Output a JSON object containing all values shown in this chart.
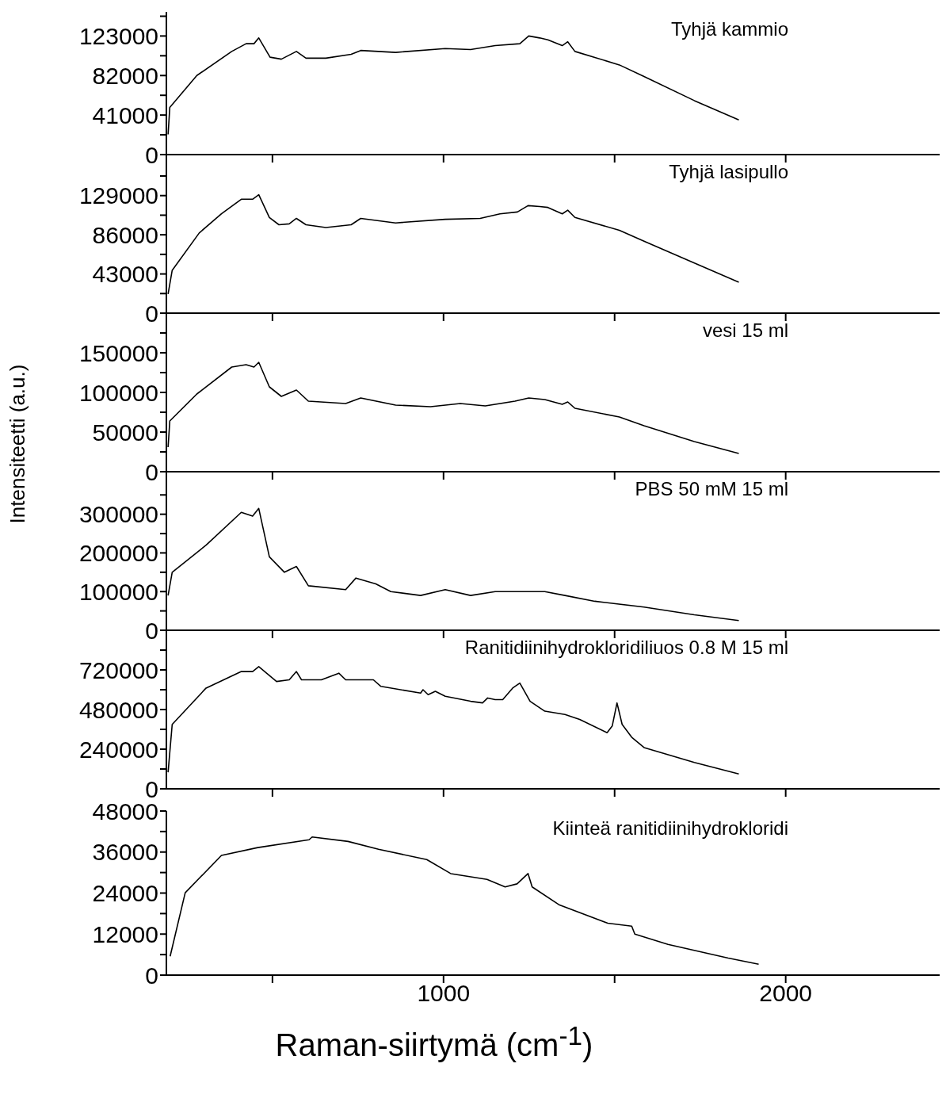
{
  "chart_data": [
    {
      "type": "line",
      "xlim": [
        190,
        2450
      ],
      "xticks": [
        {
          "value": 500,
          "label": null
        },
        {
          "value": 1000,
          "label": null
        },
        {
          "value": 1500,
          "label": null
        },
        {
          "value": 2000,
          "label": null
        }
      ],
      "tick_labels": "y",
      "ylim": [
        0,
        148000
      ],
      "yticks": [
        0,
        {
          "value": 20500,
          "label": null
        },
        41000,
        {
          "value": 61500,
          "label": null
        },
        82000,
        {
          "value": 102500,
          "label": null
        },
        123000,
        {
          "value": 143500,
          "label": null
        }
      ],
      "x": [
        195,
        200,
        279,
        381,
        423,
        446,
        460,
        493,
        526,
        570,
        598,
        656,
        730,
        758,
        860,
        1005,
        1079,
        1151,
        1223,
        1249,
        1281,
        1305,
        1347,
        1363,
        1384,
        1514,
        1586,
        1733,
        1863
      ],
      "series": [
        {
          "name": "Tyhjä kammio",
          "color": "#000000",
          "values": [
            21000,
            49000,
            82000,
            107000,
            115000,
            115000,
            121000,
            101000,
            99000,
            107000,
            100000,
            100000,
            104000,
            108000,
            106000,
            110000,
            109000,
            113000,
            115000,
            123000,
            121000,
            119000,
            113000,
            117000,
            107000,
            93000,
            81000,
            56000,
            36000
          ]
        }
      ]
    },
    {
      "type": "line",
      "xlim": [
        190,
        2450
      ],
      "xticks": [
        {
          "value": 500,
          "label": null
        },
        {
          "value": 1000,
          "label": null
        },
        {
          "value": 1500,
          "label": null
        },
        {
          "value": 2000,
          "label": null
        }
      ],
      "tick_labels": "y",
      "ylim": [
        0,
        174000
      ],
      "yticks": [
        0,
        {
          "value": 21500,
          "label": null
        },
        43000,
        {
          "value": 64500,
          "label": null
        },
        86000,
        {
          "value": 107500,
          "label": null
        },
        129000,
        {
          "value": 150500,
          "label": null
        }
      ],
      "x": [
        195,
        207,
        286,
        351,
        409,
        442,
        460,
        491,
        519,
        549,
        570,
        598,
        656,
        730,
        758,
        860,
        1005,
        1107,
        1165,
        1216,
        1247,
        1281,
        1305,
        1347,
        1363,
        1384,
        1514,
        1586,
        1733,
        1863
      ],
      "series": [
        {
          "name": "Tyhjä lasipullo",
          "color": "#000000",
          "values": [
            21000,
            47000,
            88000,
            109000,
            125000,
            125000,
            130000,
            105000,
            97000,
            98000,
            104000,
            97000,
            94000,
            97000,
            104000,
            99000,
            103000,
            104000,
            109000,
            111000,
            118000,
            117000,
            116000,
            109000,
            113000,
            105000,
            91000,
            79000,
            55000,
            34000
          ]
        }
      ]
    },
    {
      "type": "line",
      "xlim": [
        190,
        2450
      ],
      "xticks": [
        {
          "value": 500,
          "label": null
        },
        {
          "value": 1000,
          "label": null
        },
        {
          "value": 1500,
          "label": null
        },
        {
          "value": 2000,
          "label": null
        }
      ],
      "tick_labels": "y",
      "ylim": [
        0,
        200000
      ],
      "yticks": [
        0,
        {
          "value": 25000,
          "label": null
        },
        50000,
        {
          "value": 75000,
          "label": null
        },
        100000,
        {
          "value": 125000,
          "label": null
        },
        150000,
        {
          "value": 175000,
          "label": null
        }
      ],
      "ylabel": "Intensiteetti (a.u.)",
      "x": [
        195,
        200,
        279,
        381,
        423,
        446,
        460,
        491,
        526,
        570,
        605,
        714,
        758,
        860,
        962,
        1049,
        1122,
        1209,
        1249,
        1296,
        1347,
        1363,
        1384,
        1514,
        1586,
        1733,
        1863
      ],
      "series": [
        {
          "name": "vesi 15 ml",
          "color": "#000000",
          "values": [
            31000,
            64000,
            98000,
            132000,
            135000,
            132000,
            138000,
            107000,
            95000,
            103000,
            89000,
            86000,
            93000,
            84000,
            82000,
            86000,
            83000,
            89000,
            93000,
            91000,
            85000,
            88000,
            80000,
            69000,
            58000,
            38000,
            23000
          ]
        }
      ]
    },
    {
      "type": "line",
      "xlim": [
        190,
        2450
      ],
      "xticks": [
        {
          "value": 500,
          "label": null
        },
        {
          "value": 1000,
          "label": null
        },
        {
          "value": 1500,
          "label": null
        },
        {
          "value": 2000,
          "label": null
        }
      ],
      "tick_labels": "y",
      "ylim": [
        0,
        410000
      ],
      "yticks": [
        0,
        {
          "value": 50000,
          "label": null
        },
        100000,
        {
          "value": 150000,
          "label": null
        },
        200000,
        {
          "value": 250000,
          "label": null
        },
        300000,
        {
          "value": 350000,
          "label": null
        }
      ],
      "x": [
        195,
        207,
        306,
        409,
        442,
        460,
        491,
        535,
        570,
        605,
        714,
        744,
        802,
        846,
        933,
        1005,
        1079,
        1151,
        1223,
        1296,
        1355,
        1442,
        1586,
        1733,
        1863
      ],
      "series": [
        {
          "name": "PBS 50 mM 15 ml",
          "color": "#000000",
          "values": [
            90000,
            150000,
            220000,
            305000,
            295000,
            315000,
            190000,
            150000,
            165000,
            115000,
            105000,
            135000,
            120000,
            100000,
            90000,
            105000,
            90000,
            100000,
            100000,
            100000,
            90000,
            75000,
            60000,
            40000,
            25000
          ]
        }
      ]
    },
    {
      "type": "line",
      "xlim": [
        190,
        2450
      ],
      "xticks": [
        {
          "value": 500,
          "label": null
        },
        {
          "value": 1000,
          "label": null
        },
        {
          "value": 1500,
          "label": null
        },
        {
          "value": 2000,
          "label": null
        }
      ],
      "tick_labels": "y",
      "ylim": [
        0,
        960000
      ],
      "yticks": [
        0,
        {
          "value": 120000,
          "label": null
        },
        240000,
        {
          "value": 360000,
          "label": null
        },
        480000,
        {
          "value": 600000,
          "label": null
        },
        720000,
        {
          "value": 840000,
          "label": null
        }
      ],
      "x": [
        195,
        207,
        306,
        409,
        442,
        460,
        512,
        549,
        570,
        585,
        643,
        694,
        714,
        795,
        817,
        933,
        940,
        955,
        976,
        1005,
        1079,
        1114,
        1129,
        1151,
        1173,
        1202,
        1223,
        1253,
        1296,
        1355,
        1398,
        1478,
        1493,
        1507,
        1522,
        1551,
        1586,
        1733,
        1863
      ],
      "series": [
        {
          "name": "Ranitidiinihydrokloridiliuos 0.8 M 15 ml",
          "color": "#000000",
          "values": [
            100000,
            390000,
            610000,
            710000,
            710000,
            740000,
            650000,
            660000,
            710000,
            660000,
            660000,
            700000,
            660000,
            660000,
            620000,
            580000,
            600000,
            570000,
            590000,
            560000,
            530000,
            520000,
            550000,
            540000,
            540000,
            610000,
            640000,
            530000,
            470000,
            450000,
            420000,
            340000,
            380000,
            520000,
            390000,
            310000,
            250000,
            160000,
            90000
          ]
        }
      ]
    },
    {
      "type": "line",
      "xlim": [
        190,
        2450
      ],
      "xticks": [
        {
          "value": 500,
          "label": null
        },
        1000,
        {
          "value": 1500,
          "label": null
        },
        2000
      ],
      "ylim": [
        0,
        48000
      ],
      "yticks": [
        0,
        {
          "value": 6000,
          "label": null
        },
        12000,
        {
          "value": 18000,
          "label": null
        },
        24000,
        {
          "value": 30000,
          "label": null
        },
        36000,
        {
          "value": 42000,
          "label": null
        },
        48000
      ],
      "xlabel": "Raman-siirtymä (cm$^{-1}$)",
      "x": [
        201,
        245,
        351,
        457,
        607,
        616,
        721,
        810,
        951,
        1021,
        1127,
        1180,
        1215,
        1247,
        1259,
        1339,
        1480,
        1550,
        1559,
        1656,
        1832,
        1921
      ],
      "series": [
        {
          "name": "Kiinteä ranitidiinihydrokloridi",
          "color": "#000000",
          "values": [
            5500,
            24100,
            35000,
            37300,
            39600,
            40400,
            39100,
            36800,
            33800,
            29700,
            28000,
            25800,
            26700,
            29700,
            25800,
            20500,
            15200,
            14300,
            12000,
            9000,
            5000,
            3200
          ]
        }
      ]
    }
  ]
}
